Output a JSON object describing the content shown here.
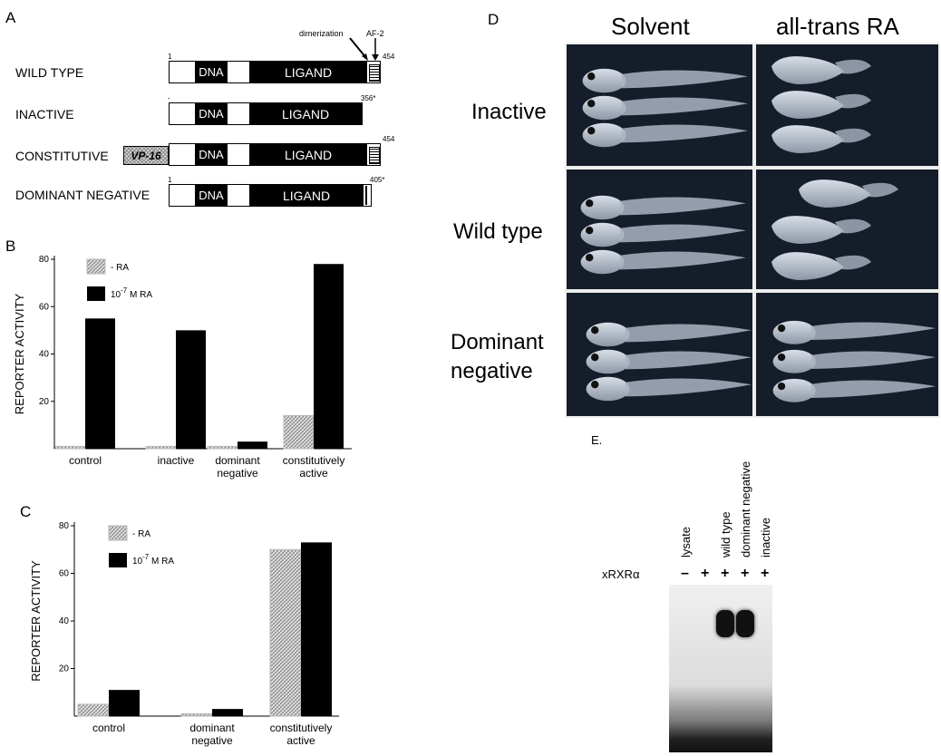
{
  "panels": {
    "a": "A",
    "b": "B",
    "c": "C",
    "d": "D",
    "e": "E."
  },
  "panel_a": {
    "rows": [
      {
        "label": "WILD TYPE",
        "start": "1",
        "end": "454",
        "domain": "DNA",
        "ligand": "LIGAND"
      },
      {
        "label": "INACTIVE",
        "start": "-",
        "end": "356*",
        "domain": "DNA",
        "ligand": "LIGAND"
      },
      {
        "label": "CONSTITUTIVE",
        "prefix": "VP-16",
        "end": "454",
        "domain": "DNA",
        "ligand": "LIGAND"
      },
      {
        "label": "DOMINANT NEGATIVE",
        "start": "1",
        "end": "405*",
        "domain": "DNA",
        "ligand": "LIGAND"
      }
    ],
    "annotations": {
      "dimerization": "dimerization",
      "af2": "AF-2"
    }
  },
  "chart_data": [
    {
      "type": "bar",
      "panel": "B",
      "categories": [
        "control",
        "inactive",
        "dominant negative",
        "constitutively active"
      ],
      "category_lines": [
        [
          "control"
        ],
        [
          "inactive"
        ],
        [
          "dominant",
          "negative"
        ],
        [
          "constitutively",
          "active"
        ]
      ],
      "series": [
        {
          "name": "- RA",
          "values": [
            1,
            1,
            1,
            14
          ],
          "color": "#c8c8c8",
          "pattern": "hatched"
        },
        {
          "name": "10-7 M RA",
          "values": [
            55,
            50,
            3,
            78
          ],
          "color": "#000000"
        }
      ],
      "ylabel": "REPORTER ACTIVITY",
      "yticks": [
        20,
        40,
        60,
        80
      ],
      "ylim": [
        0,
        80
      ],
      "legend": "top-left"
    },
    {
      "type": "bar",
      "panel": "C",
      "categories": [
        "control",
        "dominant negative",
        "constitutively active"
      ],
      "category_lines": [
        [
          "control"
        ],
        [
          "dominant",
          "negative"
        ],
        [
          "constitutively",
          "active"
        ]
      ],
      "series": [
        {
          "name": "- RA",
          "values": [
            5,
            1,
            70
          ],
          "color": "#c8c8c8",
          "pattern": "hatched"
        },
        {
          "name": "10-7 M RA",
          "values": [
            11,
            3,
            73
          ],
          "color": "#000000"
        }
      ],
      "ylabel": "REPORTER ACTIVITY",
      "yticks": [
        20,
        40,
        60,
        80
      ],
      "ylim": [
        0,
        80
      ],
      "legend": "top-left"
    }
  ],
  "panel_d": {
    "columns": [
      "Solvent",
      "all-trans RA"
    ],
    "rows": [
      "Inactive",
      "Wild type",
      "Dominant negative"
    ],
    "row_lines": [
      [
        "Inactive"
      ],
      [
        "Wild type"
      ],
      [
        "Dominant",
        "negative"
      ]
    ]
  },
  "panel_e": {
    "row_label": "xRXRα",
    "lanes": [
      {
        "label": "lysate",
        "sign": "–",
        "band": 0
      },
      {
        "label": "",
        "sign": "+",
        "band": 0
      },
      {
        "label": "wild type",
        "sign": "+",
        "band": 1
      },
      {
        "label": "dominant negative",
        "sign": "+",
        "band": 1
      },
      {
        "label": "inactive",
        "sign": "+",
        "band": 0
      }
    ]
  }
}
